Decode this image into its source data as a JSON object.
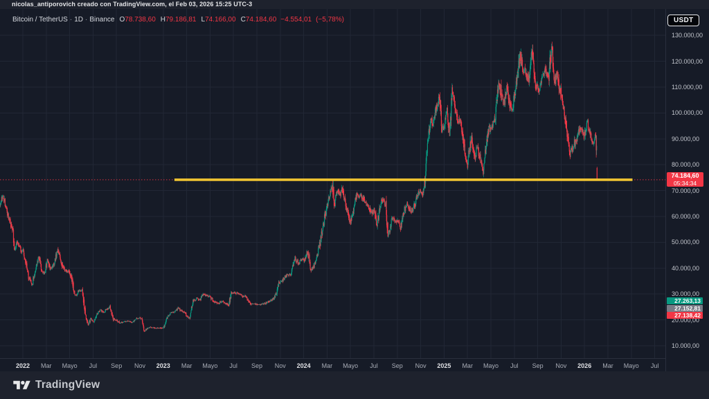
{
  "attribution": {
    "text": "nicolas_antiporovich creado con TradingView.com, el Feb 03, 2026 15:25 UTC-3"
  },
  "badge": {
    "label": "USDT"
  },
  "legend": {
    "symbol": "Bitcoin / TetherUS",
    "separator": "·",
    "interval": "1D",
    "exchange": "Binance",
    "ohlc": [
      {
        "label": "O",
        "value": "78.738,60"
      },
      {
        "label": "H",
        "value": "79.186,81"
      },
      {
        "label": "L",
        "value": "74.166,00"
      },
      {
        "label": "C",
        "value": "74.184,60"
      }
    ],
    "change": "−4.554,01",
    "change_pct": "(−5,78%)"
  },
  "price_label": {
    "price": "74.184,60",
    "countdown": "05:34:34"
  },
  "indicator_labels": [
    {
      "label": "27.263,13",
      "color": "#089981"
    },
    {
      "label": "27.152,81",
      "color": "#787b86"
    },
    {
      "label": "27.138,42",
      "color": "#f23645"
    }
  ],
  "footer": {
    "brand": "TradingView"
  },
  "colors": {
    "up": "#089981",
    "down": "#f23645",
    "support_line": "#f0c432",
    "price_line": "#f23645",
    "grid": "#212735",
    "chart_bg": "#161b27",
    "frame_bg": "#1e222d"
  },
  "chart_data": {
    "type": "candlestick",
    "title": "Bitcoin / TetherUS · 1D · Binance",
    "quote_currency": "USDT",
    "y_ticks": [
      "130.000,00",
      "120.000,00",
      "110.000,00",
      "100.000,00",
      "90.000,00",
      "80.000,00",
      "70.000,00",
      "60.000,00",
      "50.000,00",
      "40.000,00",
      "30.000,00",
      "20.000,00",
      "10.000,00"
    ],
    "y_tick_values_k": [
      130,
      120,
      110,
      100,
      90,
      80,
      70,
      60,
      50,
      40,
      30,
      20,
      10
    ],
    "x_labels": [
      "2022",
      "Mar",
      "Mayo",
      "Jul",
      "Sep",
      "Nov",
      "2023",
      "Mar",
      "Mayo",
      "Jul",
      "Sep",
      "Nov",
      "2024",
      "Mar",
      "Mayo",
      "Jul",
      "Sep",
      "Nov",
      "2025",
      "Mar",
      "Mayo",
      "Jul",
      "Sep",
      "Nov",
      "2026",
      "Mar",
      "Mayo",
      "Jul"
    ],
    "x_year_indices": [
      0,
      6,
      12,
      18,
      24
    ],
    "x_start": "Nov 2021",
    "last_candle_k": {
      "open": 78.739,
      "high": 79.187,
      "low": 74.166,
      "close": 74.185
    },
    "current_price_k": 74.1846,
    "support_line": {
      "price_k": 74.1846,
      "from_month": 14.95,
      "to_month": 54.1
    },
    "waypoints_month_pricek": [
      [
        0.05,
        64.5
      ],
      [
        0.3,
        67.8
      ],
      [
        0.6,
        62.5
      ],
      [
        0.9,
        58.5
      ],
      [
        1.15,
        54
      ],
      [
        1.3,
        47.5
      ],
      [
        1.55,
        50.5
      ],
      [
        1.8,
        47
      ],
      [
        2.0,
        46.5
      ],
      [
        2.2,
        43
      ],
      [
        2.5,
        36.5
      ],
      [
        2.8,
        33.8
      ],
      [
        3.0,
        38.2
      ],
      [
        3.35,
        44.3
      ],
      [
        3.6,
        39.5
      ],
      [
        3.85,
        38
      ],
      [
        4.1,
        43
      ],
      [
        4.35,
        40
      ],
      [
        4.65,
        41.5
      ],
      [
        4.95,
        46.8
      ],
      [
        5.1,
        46.3
      ],
      [
        5.4,
        40.5
      ],
      [
        5.7,
        39
      ],
      [
        5.95,
        38.6
      ],
      [
        6.2,
        35.8
      ],
      [
        6.35,
        31
      ],
      [
        6.55,
        29.5
      ],
      [
        6.8,
        31.3
      ],
      [
        7.05,
        31.3
      ],
      [
        7.35,
        22
      ],
      [
        7.6,
        18.2
      ],
      [
        7.8,
        20.5
      ],
      [
        8.05,
        19.2
      ],
      [
        8.35,
        22.3
      ],
      [
        8.65,
        24
      ],
      [
        8.9,
        23
      ],
      [
        9.2,
        24.2
      ],
      [
        9.45,
        24.9
      ],
      [
        9.75,
        20.2
      ],
      [
        10.05,
        19.6
      ],
      [
        10.35,
        18.9
      ],
      [
        10.65,
        19.4
      ],
      [
        11,
        19.5
      ],
      [
        11.35,
        19.1
      ],
      [
        11.75,
        20.6
      ],
      [
        12.1,
        20.9
      ],
      [
        12.3,
        17.5
      ],
      [
        12.4,
        15.9
      ],
      [
        12.65,
        16.7
      ],
      [
        12.95,
        17.2
      ],
      [
        13.3,
        16.8
      ],
      [
        13.7,
        16.9
      ],
      [
        14,
        16.6
      ],
      [
        14.35,
        21.1
      ],
      [
        14.65,
        22.7
      ],
      [
        14.95,
        23.1
      ],
      [
        15.3,
        24.6
      ],
      [
        15.6,
        23.4
      ],
      [
        15.9,
        22.4
      ],
      [
        16.2,
        20.3
      ],
      [
        16.55,
        27.2
      ],
      [
        16.85,
        28.3
      ],
      [
        17.15,
        27.8
      ],
      [
        17.45,
        29.9
      ],
      [
        17.75,
        29.3
      ],
      [
        18.05,
        28.7
      ],
      [
        18.4,
        26.9
      ],
      [
        18.75,
        26.6
      ],
      [
        19.05,
        27.2
      ],
      [
        19.4,
        26.3
      ],
      [
        19.6,
        25.6
      ],
      [
        19.8,
        30.5
      ],
      [
        20.1,
        30.6
      ],
      [
        20.45,
        30.2
      ],
      [
        20.75,
        29.2
      ],
      [
        21.05,
        29.2
      ],
      [
        21.45,
        26.2
      ],
      [
        21.85,
        26.1
      ],
      [
        22.25,
        25.9
      ],
      [
        22.65,
        26.3
      ],
      [
        23.05,
        27.1
      ],
      [
        23.45,
        28.4
      ],
      [
        23.7,
        31
      ],
      [
        23.85,
        34.2
      ],
      [
        24.1,
        34.9
      ],
      [
        24.4,
        36.8
      ],
      [
        24.7,
        37.3
      ],
      [
        24.95,
        37.8
      ],
      [
        25.25,
        43.9
      ],
      [
        25.55,
        41.8
      ],
      [
        25.85,
        43.5
      ],
      [
        26.05,
        42.8
      ],
      [
        26.35,
        46.4
      ],
      [
        26.6,
        39.8
      ],
      [
        26.8,
        40
      ],
      [
        27.05,
        42.9
      ],
      [
        27.45,
        51
      ],
      [
        27.85,
        61
      ],
      [
        28.15,
        67
      ],
      [
        28.45,
        72.5
      ],
      [
        28.6,
        64.5
      ],
      [
        28.85,
        69.5
      ],
      [
        29.1,
        69
      ],
      [
        29.35,
        70.3
      ],
      [
        29.65,
        63.5
      ],
      [
        29.95,
        57.5
      ],
      [
        30.2,
        61.5
      ],
      [
        30.5,
        67.8
      ],
      [
        30.8,
        68.3
      ],
      [
        31.1,
        66.8
      ],
      [
        31.45,
        64.8
      ],
      [
        31.75,
        61.3
      ],
      [
        32.05,
        62.8
      ],
      [
        32.25,
        56.5
      ],
      [
        32.55,
        64
      ],
      [
        32.8,
        67
      ],
      [
        33.05,
        63.5
      ],
      [
        33.2,
        52.5
      ],
      [
        33.55,
        59.3
      ],
      [
        33.85,
        58
      ],
      [
        34.05,
        58.5
      ],
      [
        34.25,
        54.8
      ],
      [
        34.6,
        62.5
      ],
      [
        34.85,
        65.3
      ],
      [
        35.05,
        62.8
      ],
      [
        35.35,
        62.3
      ],
      [
        35.65,
        67.3
      ],
      [
        35.95,
        69.8
      ],
      [
        36.15,
        68.5
      ],
      [
        36.35,
        73
      ],
      [
        36.6,
        90
      ],
      [
        36.85,
        97.5
      ],
      [
        37.05,
        96
      ],
      [
        37.25,
        100.5
      ],
      [
        37.45,
        104
      ],
      [
        37.6,
        105.5
      ],
      [
        37.8,
        94.5
      ],
      [
        38.05,
        94
      ],
      [
        38.25,
        101.5
      ],
      [
        38.45,
        93.5
      ],
      [
        38.7,
        108.5
      ],
      [
        38.9,
        103
      ],
      [
        39.15,
        97.5
      ],
      [
        39.45,
        96
      ],
      [
        39.7,
        87.5
      ],
      [
        39.98,
        79.5
      ],
      [
        40.15,
        85.5
      ],
      [
        40.35,
        91
      ],
      [
        40.6,
        83
      ],
      [
        40.85,
        86.5
      ],
      [
        41.1,
        82
      ],
      [
        41.3,
        77
      ],
      [
        41.55,
        85.5
      ],
      [
        41.85,
        94
      ],
      [
        42.05,
        95
      ],
      [
        42.35,
        97
      ],
      [
        42.7,
        111.5
      ],
      [
        42.95,
        106
      ],
      [
        43.15,
        103.8
      ],
      [
        43.35,
        109.8
      ],
      [
        43.6,
        103.5
      ],
      [
        43.8,
        100.8
      ],
      [
        44.05,
        107.3
      ],
      [
        44.5,
        122.5
      ],
      [
        44.75,
        117
      ],
      [
        45.05,
        114.5
      ],
      [
        45.3,
        113.8
      ],
      [
        45.5,
        124
      ],
      [
        45.75,
        111.8
      ],
      [
        46.05,
        108.5
      ],
      [
        46.35,
        112.5
      ],
      [
        46.65,
        116.8
      ],
      [
        46.95,
        114
      ],
      [
        47.2,
        126.2
      ],
      [
        47.4,
        111.5
      ],
      [
        47.65,
        114.8
      ],
      [
        47.95,
        108.5
      ],
      [
        48.2,
        102.5
      ],
      [
        48.5,
        92.5
      ],
      [
        48.75,
        84
      ],
      [
        49.05,
        87.5
      ],
      [
        49.35,
        90.5
      ],
      [
        49.65,
        94.5
      ],
      [
        49.95,
        91.5
      ],
      [
        50.25,
        96.8
      ],
      [
        50.5,
        92
      ],
      [
        50.75,
        88.5
      ],
      [
        50.95,
        91
      ],
      [
        51.0,
        88
      ],
      [
        51.03,
        85
      ],
      [
        51.06,
        80.5
      ],
      [
        51.1,
        74.2
      ]
    ]
  }
}
